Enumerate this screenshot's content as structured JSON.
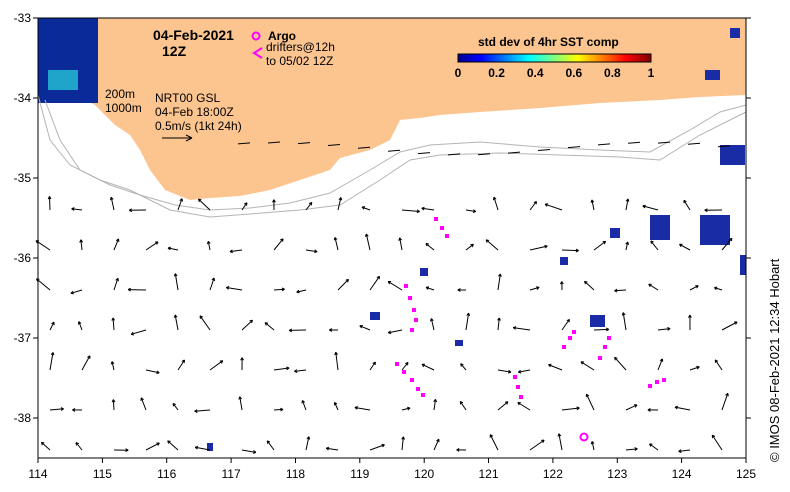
{
  "title": {
    "date": "04-Feb-2021",
    "time": "12Z"
  },
  "legend_argo": {
    "argo_label": "Argo",
    "drifters_label": "drifters@12h",
    "drifters_to_label": "to 05/02 12Z",
    "argo_color": "#ff00ff",
    "drifter_color": "#ff00ff"
  },
  "depth_labels": {
    "d200": "200m",
    "d1000": "1000m"
  },
  "current_info": {
    "product": "NRT00 GSL",
    "time": "04-Feb 18:00Z",
    "scale": "0.5m/s (1kt 24h)"
  },
  "colorbar": {
    "title": "std dev of 4hr SST comp",
    "ticks": [
      "0",
      "0.2",
      "0.4",
      "0.6",
      "0.8",
      "1"
    ]
  },
  "credit": "© IMOS 08-Feb-2021 12:34 Hobart",
  "axes": {
    "x_ticks": [
      "114",
      "115",
      "116",
      "117",
      "118",
      "119",
      "120",
      "121",
      "122",
      "123",
      "124",
      "125"
    ],
    "y_ticks": [
      "-33",
      "-34",
      "-35",
      "-36",
      "-37",
      "-38"
    ]
  },
  "colors": {
    "land": "#fcc590",
    "sea": "#ffffff",
    "bathy": "#b4b4b4"
  }
}
